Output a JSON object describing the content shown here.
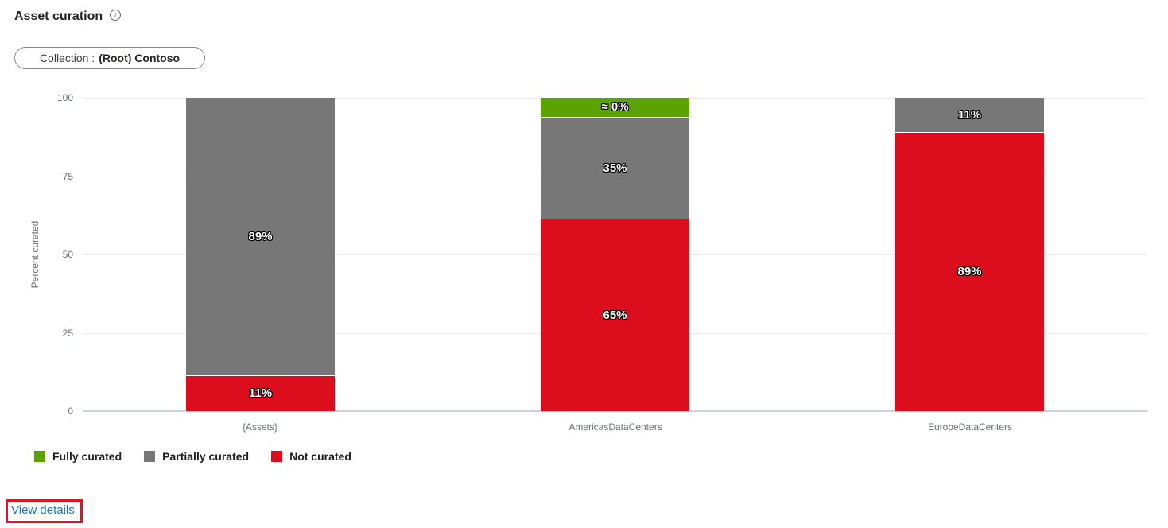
{
  "header": {
    "title": "Asset curation",
    "info_glyph": "i"
  },
  "filter_pill": {
    "prefix": "Collection :",
    "value": "(Root) Contoso"
  },
  "chart_data": {
    "type": "bar",
    "variant": "stacked-100-column",
    "title": "Asset curation",
    "xlabel": "",
    "ylabel": "Percent curated",
    "ylim": [
      0,
      100
    ],
    "yticks": [
      0,
      25,
      50,
      75,
      100
    ],
    "grid": true,
    "legend_position": "bottom",
    "categories": [
      "{Assets}",
      "AmericasDataCenters",
      "EuropeDataCenters"
    ],
    "series": [
      {
        "name": "Fully curated",
        "color": "#5ba300",
        "values": [
          0,
          0,
          0
        ]
      },
      {
        "name": "Partially curated",
        "color": "#777777",
        "values": [
          89,
          35,
          11
        ]
      },
      {
        "name": "Not curated",
        "color": "#dc0e1e",
        "values": [
          11,
          65,
          89
        ]
      }
    ],
    "bars": [
      {
        "category": "{Assets}",
        "segments": [
          {
            "series": "Partially curated",
            "value": 89,
            "label": "89%",
            "display_pct": 88.7,
            "color": "#777777"
          },
          {
            "series": "Not curated",
            "value": 11,
            "label": "11%",
            "display_pct": 11.3,
            "color": "#dc0e1e"
          }
        ]
      },
      {
        "category": "AmericasDataCenters",
        "segments": [
          {
            "series": "Fully curated",
            "value": 0,
            "label": "≈ 0%",
            "display_pct": 6.0,
            "color": "#5ba300"
          },
          {
            "series": "Partially curated",
            "value": 35,
            "label": "35%",
            "display_pct": 32.4,
            "color": "#777777"
          },
          {
            "series": "Not curated",
            "value": 65,
            "label": "65%",
            "display_pct": 61.6,
            "color": "#dc0e1e"
          }
        ]
      },
      {
        "category": "EuropeDataCenters",
        "segments": [
          {
            "series": "Partially curated",
            "value": 11,
            "label": "11%",
            "display_pct": 10.9,
            "color": "#777777"
          },
          {
            "series": "Not curated",
            "value": 89,
            "label": "89%",
            "display_pct": 89.1,
            "color": "#dc0e1e"
          }
        ]
      }
    ]
  },
  "legend": {
    "items": [
      {
        "label": "Fully curated",
        "color": "#5ba300"
      },
      {
        "label": "Partially curated",
        "color": "#777777"
      },
      {
        "label": "Not curated",
        "color": "#dc0e1e"
      }
    ]
  },
  "link": {
    "label": "View details"
  },
  "colors": {
    "accent_link": "#1077d4",
    "annotation": "#e81123",
    "gridline": "#ececec",
    "axis_line": "#cbd2e4",
    "axis_text": "#6b6e76"
  }
}
